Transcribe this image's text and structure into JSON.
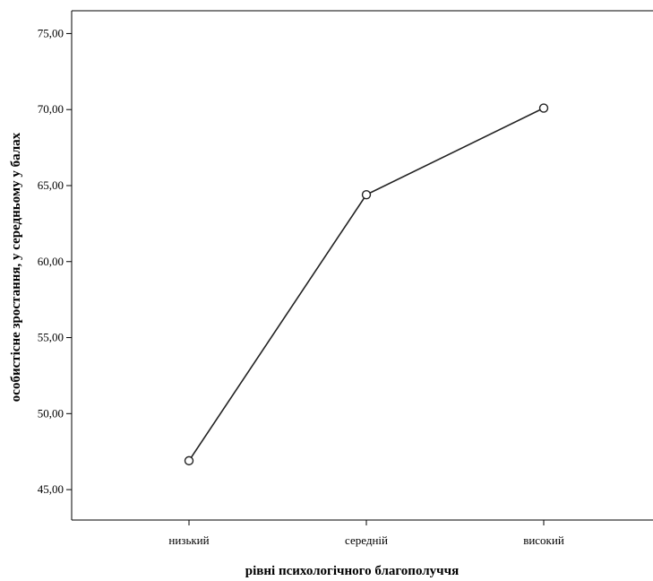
{
  "chart_data": {
    "type": "line",
    "categories": [
      "низький",
      "середній",
      "високий"
    ],
    "series": [
      {
        "values": [
          46.9,
          64.4,
          70.1
        ]
      }
    ],
    "xlabel": "рівні психологічного благополуччя",
    "ylabel": "особистісне зростання, у середньому у балах",
    "ylim": [
      43.0,
      76.5
    ],
    "yticks": [
      "45,00",
      "50,00",
      "55,00",
      "60,00",
      "65,00",
      "70,00",
      "75,00"
    ],
    "ytick_values": [
      45,
      50,
      55,
      60,
      65,
      70,
      75
    ],
    "grid": false,
    "marker": "circle",
    "line_color": "#222222"
  }
}
